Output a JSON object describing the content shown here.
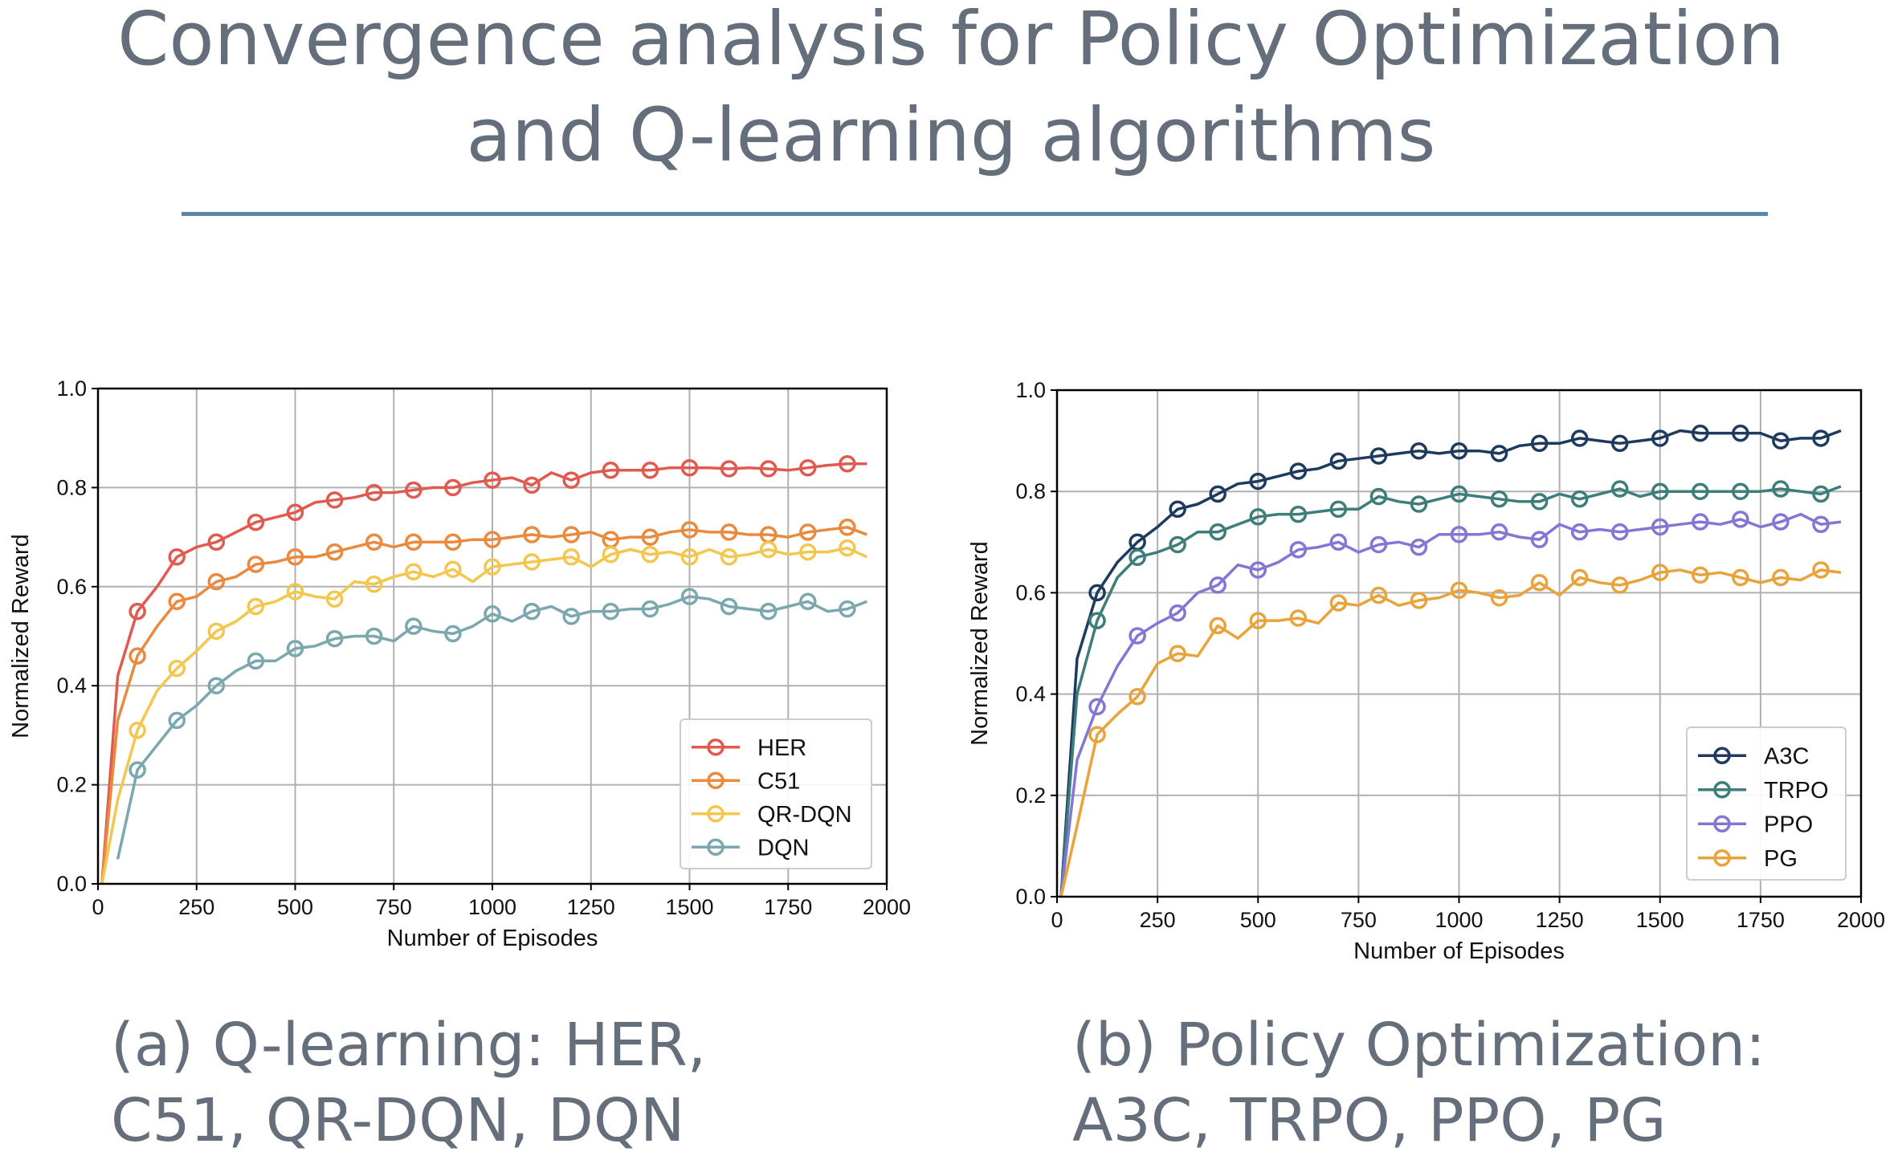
{
  "title": {
    "line1": "Convergence analysis for Policy Optimization",
    "line2": "and Q-learning algorithms"
  },
  "captions": {
    "a_line1": "(a) Q-learning: HER,",
    "a_line2": "C51, QR-DQN, DQN",
    "b_line1": "(b) Policy Optimization:",
    "b_line2": "A3C, TRPO, PPO, PG"
  },
  "chart_data": [
    {
      "type": "line",
      "title": "",
      "xlabel": "Number of Episodes",
      "ylabel": "Normalized Reward",
      "xlim": [
        0,
        2000
      ],
      "ylim": [
        0,
        1.0
      ],
      "xticks": [
        0,
        250,
        500,
        750,
        1000,
        1250,
        1500,
        1750,
        2000
      ],
      "yticks": [
        0.0,
        0.2,
        0.4,
        0.6,
        0.8,
        1.0
      ],
      "grid": true,
      "legend_position": "bottom-right",
      "series": [
        {
          "name": "HER",
          "color": "#e05a4f",
          "x": [
            10,
            50,
            100,
            150,
            200,
            250,
            300,
            350,
            400,
            450,
            500,
            550,
            600,
            650,
            700,
            750,
            800,
            850,
            900,
            950,
            1000,
            1050,
            1100,
            1150,
            1200,
            1250,
            1300,
            1350,
            1400,
            1450,
            1500,
            1550,
            1600,
            1650,
            1700,
            1750,
            1800,
            1850,
            1900,
            1950
          ],
          "y": [
            0.0,
            0.42,
            0.55,
            0.6,
            0.66,
            0.68,
            0.69,
            0.71,
            0.73,
            0.74,
            0.75,
            0.77,
            0.775,
            0.78,
            0.79,
            0.79,
            0.795,
            0.8,
            0.8,
            0.81,
            0.815,
            0.82,
            0.805,
            0.83,
            0.815,
            0.83,
            0.835,
            0.835,
            0.835,
            0.84,
            0.84,
            0.84,
            0.838,
            0.84,
            0.838,
            0.835,
            0.84,
            0.845,
            0.848,
            0.848
          ]
        },
        {
          "name": "C51",
          "color": "#ea8a3e",
          "x": [
            10,
            50,
            100,
            150,
            200,
            250,
            300,
            350,
            400,
            450,
            500,
            550,
            600,
            650,
            700,
            750,
            800,
            850,
            900,
            950,
            1000,
            1050,
            1100,
            1150,
            1200,
            1250,
            1300,
            1350,
            1400,
            1450,
            1500,
            1550,
            1600,
            1650,
            1700,
            1750,
            1800,
            1850,
            1900,
            1950
          ],
          "y": [
            0.0,
            0.33,
            0.46,
            0.52,
            0.57,
            0.58,
            0.61,
            0.62,
            0.645,
            0.65,
            0.66,
            0.66,
            0.67,
            0.68,
            0.69,
            0.68,
            0.69,
            0.69,
            0.69,
            0.695,
            0.695,
            0.7,
            0.705,
            0.7,
            0.705,
            0.71,
            0.695,
            0.7,
            0.7,
            0.71,
            0.715,
            0.71,
            0.71,
            0.705,
            0.705,
            0.7,
            0.71,
            0.715,
            0.72,
            0.705
          ]
        },
        {
          "name": "QR-DQN",
          "color": "#f3c74f",
          "x": [
            10,
            50,
            100,
            150,
            200,
            250,
            300,
            350,
            400,
            450,
            500,
            550,
            600,
            650,
            700,
            750,
            800,
            850,
            900,
            950,
            1000,
            1050,
            1100,
            1150,
            1200,
            1250,
            1300,
            1350,
            1400,
            1450,
            1500,
            1550,
            1600,
            1650,
            1700,
            1750,
            1800,
            1850,
            1900,
            1950
          ],
          "y": [
            0.0,
            0.17,
            0.31,
            0.39,
            0.435,
            0.47,
            0.51,
            0.53,
            0.56,
            0.57,
            0.59,
            0.58,
            0.575,
            0.61,
            0.605,
            0.62,
            0.63,
            0.62,
            0.635,
            0.61,
            0.64,
            0.645,
            0.65,
            0.655,
            0.66,
            0.64,
            0.665,
            0.675,
            0.665,
            0.67,
            0.66,
            0.675,
            0.66,
            0.665,
            0.675,
            0.665,
            0.67,
            0.67,
            0.678,
            0.66
          ]
        },
        {
          "name": "DQN",
          "color": "#7ba7ae",
          "x": [
            50,
            100,
            150,
            200,
            250,
            300,
            350,
            400,
            450,
            500,
            550,
            600,
            650,
            700,
            750,
            800,
            850,
            900,
            950,
            1000,
            1050,
            1100,
            1150,
            1200,
            1250,
            1300,
            1350,
            1400,
            1450,
            1500,
            1550,
            1600,
            1650,
            1700,
            1750,
            1800,
            1850,
            1900,
            1950
          ],
          "y": [
            0.05,
            0.23,
            0.28,
            0.33,
            0.36,
            0.4,
            0.43,
            0.45,
            0.45,
            0.475,
            0.48,
            0.495,
            0.5,
            0.5,
            0.49,
            0.52,
            0.51,
            0.505,
            0.52,
            0.545,
            0.53,
            0.55,
            0.56,
            0.54,
            0.55,
            0.55,
            0.555,
            0.555,
            0.565,
            0.58,
            0.575,
            0.56,
            0.555,
            0.55,
            0.56,
            0.57,
            0.55,
            0.555,
            0.57
          ]
        }
      ]
    },
    {
      "type": "line",
      "title": "",
      "xlabel": "Number of Episodes",
      "ylabel": "Normalized Reward",
      "xlim": [
        0,
        2000
      ],
      "ylim": [
        0,
        1.0
      ],
      "xticks": [
        0,
        250,
        500,
        750,
        1000,
        1250,
        1500,
        1750,
        2000
      ],
      "yticks": [
        0.0,
        0.2,
        0.4,
        0.6,
        0.8,
        1.0
      ],
      "grid": true,
      "legend_position": "bottom-right",
      "series": [
        {
          "name": "A3C",
          "color": "#1f3a5f",
          "x": [
            10,
            50,
            100,
            150,
            200,
            250,
            300,
            350,
            400,
            450,
            500,
            550,
            600,
            650,
            700,
            750,
            800,
            850,
            900,
            950,
            1000,
            1050,
            1100,
            1150,
            1200,
            1250,
            1300,
            1350,
            1400,
            1450,
            1500,
            1550,
            1600,
            1650,
            1700,
            1750,
            1800,
            1850,
            1900,
            1950
          ],
          "y": [
            0.0,
            0.47,
            0.6,
            0.66,
            0.7,
            0.73,
            0.765,
            0.775,
            0.795,
            0.815,
            0.82,
            0.83,
            0.84,
            0.845,
            0.86,
            0.865,
            0.87,
            0.875,
            0.88,
            0.875,
            0.88,
            0.88,
            0.875,
            0.89,
            0.895,
            0.895,
            0.905,
            0.9,
            0.895,
            0.9,
            0.905,
            0.92,
            0.915,
            0.915,
            0.915,
            0.915,
            0.9,
            0.905,
            0.905,
            0.92
          ]
        },
        {
          "name": "TRPO",
          "color": "#3d7d7a",
          "x": [
            10,
            50,
            100,
            150,
            200,
            250,
            300,
            350,
            400,
            450,
            500,
            550,
            600,
            650,
            700,
            750,
            800,
            850,
            900,
            950,
            1000,
            1050,
            1100,
            1150,
            1200,
            1250,
            1300,
            1350,
            1400,
            1450,
            1500,
            1550,
            1600,
            1650,
            1700,
            1750,
            1800,
            1850,
            1900,
            1950
          ],
          "y": [
            0.0,
            0.4,
            0.545,
            0.63,
            0.67,
            0.68,
            0.695,
            0.72,
            0.72,
            0.735,
            0.75,
            0.755,
            0.755,
            0.76,
            0.765,
            0.765,
            0.79,
            0.78,
            0.775,
            0.785,
            0.795,
            0.79,
            0.785,
            0.78,
            0.78,
            0.795,
            0.785,
            0.795,
            0.805,
            0.79,
            0.8,
            0.8,
            0.8,
            0.8,
            0.8,
            0.8,
            0.805,
            0.8,
            0.795,
            0.81
          ]
        },
        {
          "name": "PPO",
          "color": "#8377d6",
          "x": [
            10,
            50,
            100,
            150,
            200,
            250,
            300,
            350,
            400,
            450,
            500,
            550,
            600,
            650,
            700,
            750,
            800,
            850,
            900,
            950,
            1000,
            1050,
            1100,
            1150,
            1200,
            1250,
            1300,
            1350,
            1400,
            1450,
            1500,
            1550,
            1600,
            1650,
            1700,
            1750,
            1800,
            1850,
            1900,
            1950
          ],
          "y": [
            0.0,
            0.27,
            0.375,
            0.455,
            0.515,
            0.54,
            0.56,
            0.6,
            0.615,
            0.655,
            0.645,
            0.66,
            0.685,
            0.69,
            0.7,
            0.68,
            0.695,
            0.7,
            0.69,
            0.715,
            0.715,
            0.715,
            0.72,
            0.71,
            0.705,
            0.735,
            0.72,
            0.725,
            0.72,
            0.725,
            0.73,
            0.735,
            0.74,
            0.735,
            0.745,
            0.73,
            0.74,
            0.755,
            0.735,
            0.74
          ]
        },
        {
          "name": "PG",
          "color": "#e8a33c",
          "x": [
            10,
            50,
            100,
            150,
            200,
            250,
            300,
            350,
            400,
            450,
            500,
            550,
            600,
            650,
            700,
            750,
            800,
            850,
            900,
            950,
            1000,
            1050,
            1100,
            1150,
            1200,
            1250,
            1300,
            1350,
            1400,
            1450,
            1500,
            1550,
            1600,
            1650,
            1700,
            1750,
            1800,
            1850,
            1900,
            1950
          ],
          "y": [
            0.0,
            0.14,
            0.32,
            0.36,
            0.395,
            0.46,
            0.48,
            0.475,
            0.535,
            0.51,
            0.545,
            0.545,
            0.55,
            0.54,
            0.58,
            0.575,
            0.595,
            0.575,
            0.585,
            0.59,
            0.605,
            0.6,
            0.59,
            0.595,
            0.62,
            0.595,
            0.63,
            0.62,
            0.615,
            0.625,
            0.64,
            0.645,
            0.635,
            0.64,
            0.63,
            0.62,
            0.63,
            0.625,
            0.645,
            0.64
          ]
        }
      ]
    }
  ]
}
